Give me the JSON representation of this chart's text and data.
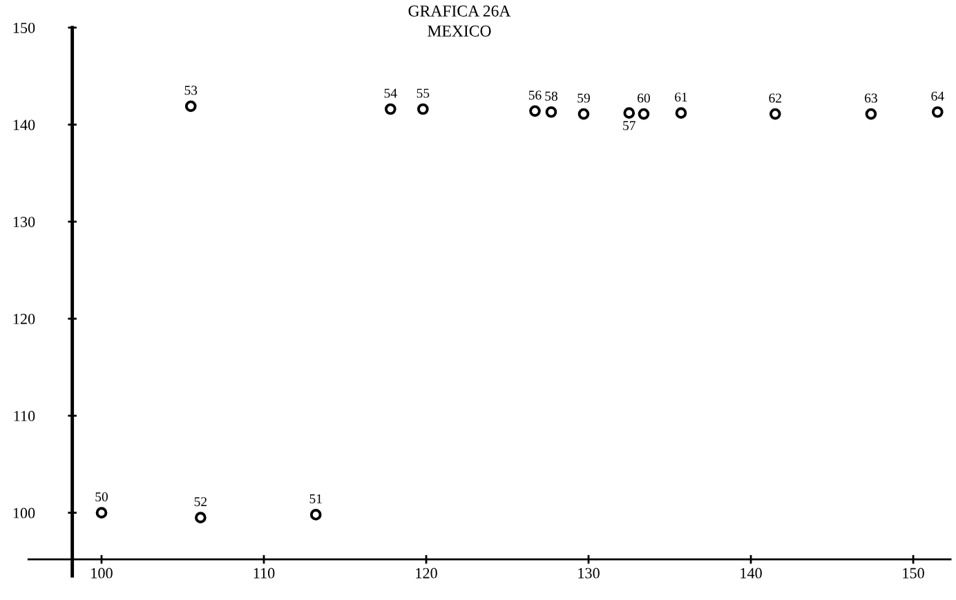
{
  "chart_data": {
    "type": "scatter",
    "title": "GRAFICA 26A",
    "subtitle": "MEXICO",
    "series": [
      {
        "color": "#000000",
        "x": [
          100,
          113.2,
          106.1,
          105.5,
          117.8,
          119.8,
          126.7,
          132.5,
          127.7,
          129.7,
          133.4,
          135.7,
          141.5,
          147.4,
          151.5
        ],
        "values": [
          100,
          99.8,
          99.5,
          141.9,
          141.6,
          141.6,
          141.4,
          141.2,
          141.3,
          141.1,
          141.1,
          141.2,
          141.1,
          141.1,
          141.3
        ]
      }
    ],
    "xlim": [
      95.5,
      152.3
    ],
    "ylim": [
      93.5,
      150
    ],
    "xticks": [
      100,
      110,
      120,
      130,
      140,
      150
    ],
    "yticks": [
      100,
      110,
      120,
      130,
      140,
      150
    ],
    "marker": "circle",
    "grid": false,
    "annotations": [
      {
        "text": "50",
        "x": 100,
        "y": 100
      },
      {
        "text": "51",
        "x": 113.2,
        "y": 99.8
      },
      {
        "text": "52",
        "x": 106.1,
        "y": 99.5
      },
      {
        "text": "53",
        "x": 105.5,
        "y": 141.9
      },
      {
        "text": "54",
        "x": 117.8,
        "y": 141.6
      },
      {
        "text": "55",
        "x": 119.8,
        "y": 141.6
      },
      {
        "text": "56",
        "x": 126.7,
        "y": 141.4
      },
      {
        "text": "57",
        "x": 132.5,
        "y": 141.2
      },
      {
        "text": "58",
        "x": 127.7,
        "y": 141.3
      },
      {
        "text": "59",
        "x": 129.7,
        "y": 141.1
      },
      {
        "text": "60",
        "x": 133.4,
        "y": 141.1
      },
      {
        "text": "61",
        "x": 135.7,
        "y": 141.2
      },
      {
        "text": "62",
        "x": 141.5,
        "y": 141.1
      },
      {
        "text": "63",
        "x": 147.4,
        "y": 141.1
      },
      {
        "text": "64",
        "x": 151.5,
        "y": 141.3
      }
    ]
  }
}
